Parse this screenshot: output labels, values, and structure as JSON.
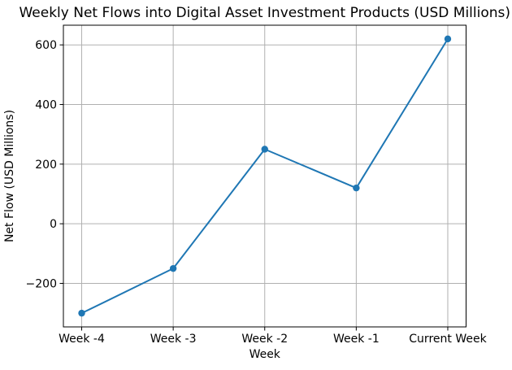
{
  "chart_data": {
    "type": "line",
    "title": "Weekly Net Flows into Digital Asset Investment Products (USD Millions)",
    "xlabel": "Week",
    "ylabel": "Net Flow (USD Millions)",
    "categories": [
      "Week -4",
      "Week -3",
      "Week -2",
      "Week -1",
      "Current Week"
    ],
    "values": [
      -300,
      -150,
      250,
      120,
      620
    ],
    "series": [
      {
        "name": "Net Flow",
        "values": [
          -300,
          -150,
          250,
          120,
          620
        ]
      }
    ],
    "yticks": [
      -200,
      0,
      200,
      400,
      600
    ],
    "ylim": [
      -346,
      666
    ],
    "grid": true,
    "legend": "none",
    "line_color": "#1f77b4",
    "marker": "circle",
    "marker_color": "#1f77b4",
    "grid_color": "#b0b0b0",
    "spine_color": "#000000",
    "text_color": "#000000",
    "background_color": "#ffffff"
  }
}
